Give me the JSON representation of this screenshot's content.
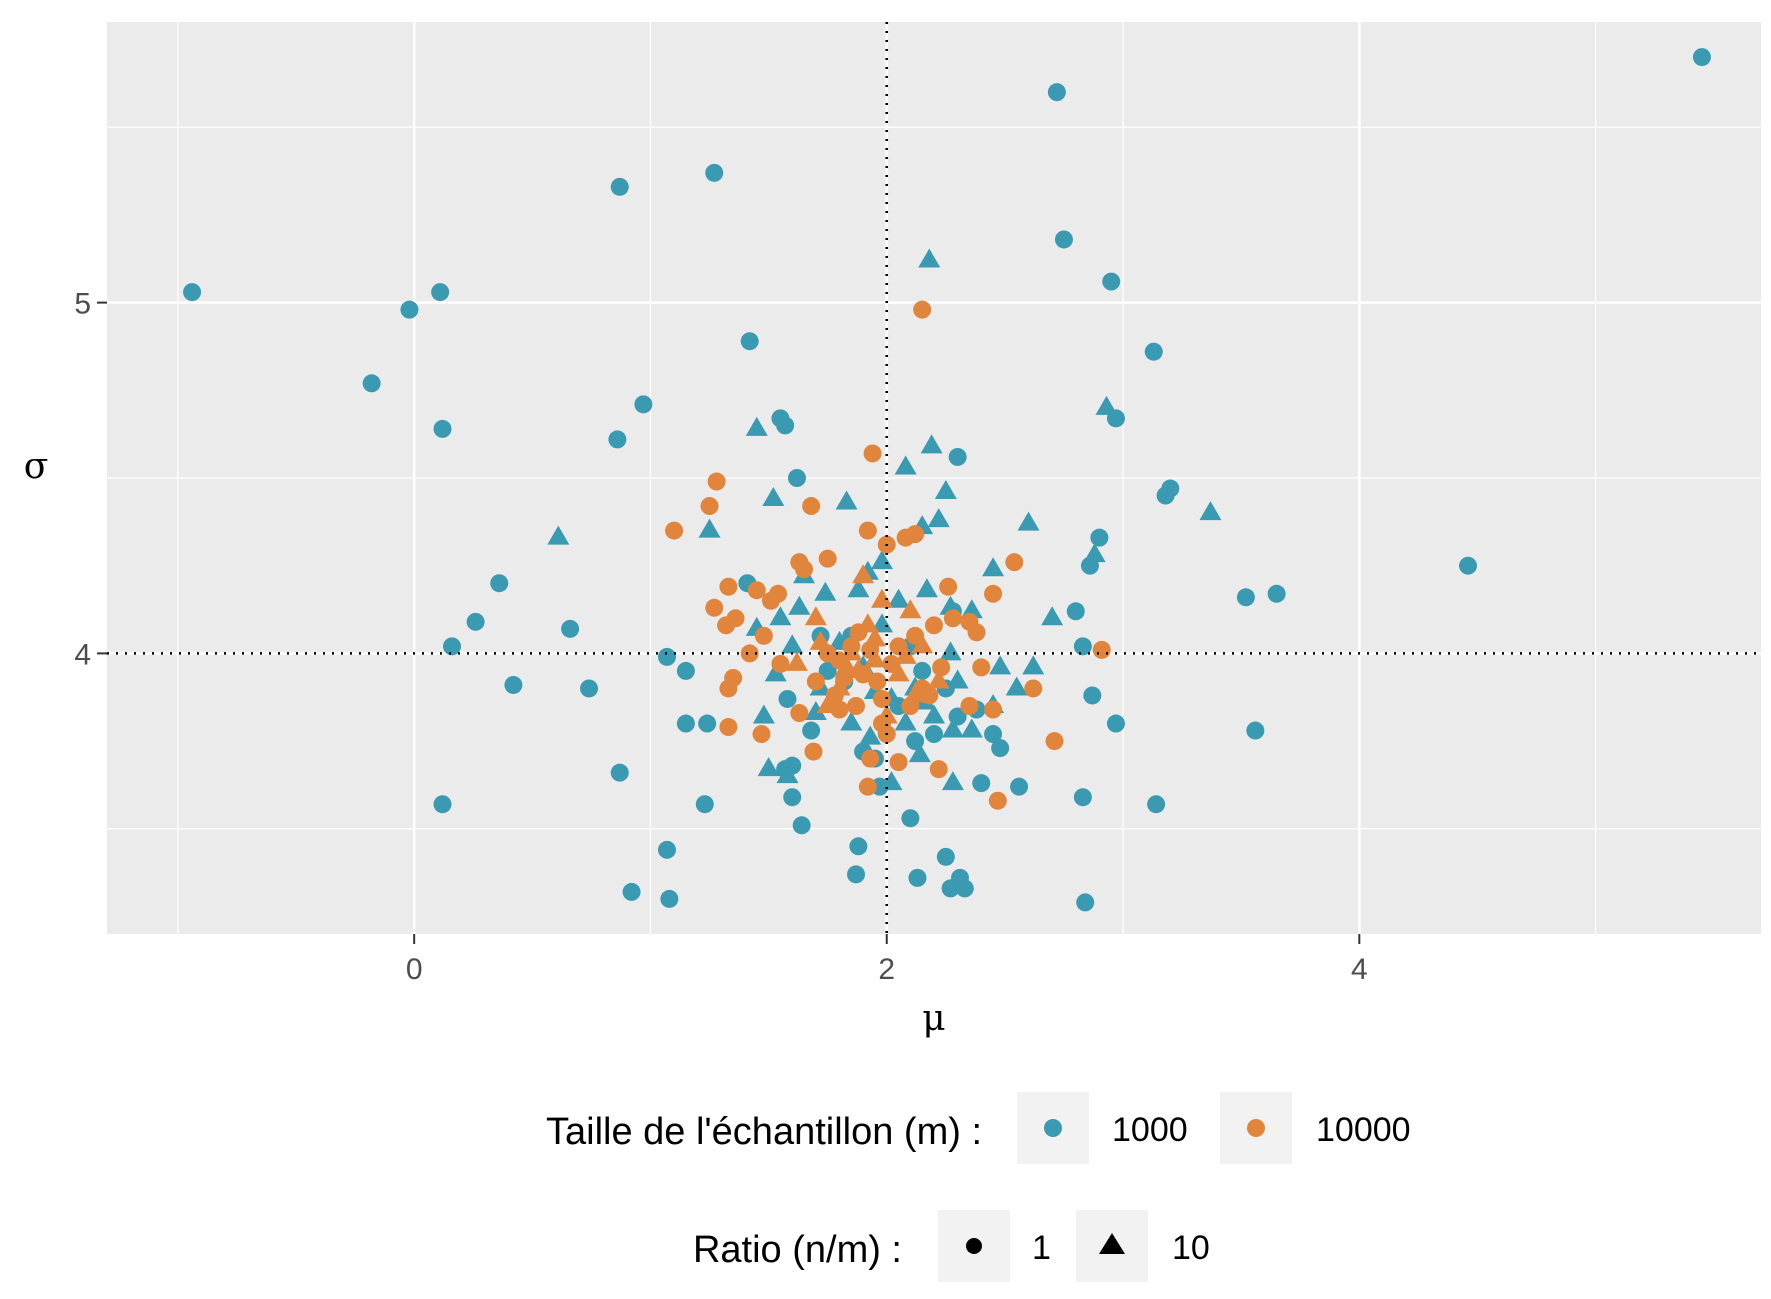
{
  "chart_data": {
    "type": "scatter",
    "xlabel": "μ",
    "ylabel": "σ",
    "xlim": [
      -1.3,
      5.7
    ],
    "ylim": [
      3.2,
      5.8
    ],
    "x_ticks": [
      0,
      2,
      4
    ],
    "y_ticks": [
      4,
      5
    ],
    "x_tick_labels": [
      "0",
      "2",
      "4"
    ],
    "y_tick_labels": [
      "4",
      "5"
    ],
    "grid": true,
    "reference_lines": {
      "x": 2,
      "y": 4,
      "style": "dotted"
    },
    "legend_position": "bottom",
    "legends": {
      "color": {
        "title": "Taille de l'échantillon (m) :",
        "entries": [
          {
            "label": "1000",
            "color": "#3a9ab1"
          },
          {
            "label": "10000",
            "color": "#e0853b"
          }
        ]
      },
      "shape": {
        "title": "Ratio (n/m) :",
        "entries": [
          {
            "label": "1",
            "shape": "circle"
          },
          {
            "label": "10",
            "shape": "triangle"
          }
        ]
      }
    },
    "series": [
      {
        "color": "#3a9ab1",
        "points": [
          [
            5.45,
            5.7
          ],
          [
            2.72,
            5.6
          ],
          [
            1.27,
            5.37
          ],
          [
            0.87,
            5.33
          ],
          [
            -0.94,
            5.03
          ],
          [
            0.11,
            5.03
          ],
          [
            -0.02,
            4.98
          ],
          [
            2.75,
            5.18
          ],
          [
            2.95,
            5.06
          ],
          [
            3.13,
            4.86
          ],
          [
            1.42,
            4.89
          ],
          [
            -0.18,
            4.77
          ],
          [
            0.12,
            4.64
          ],
          [
            0.97,
            4.71
          ],
          [
            0.86,
            4.61
          ],
          [
            1.57,
            4.65
          ],
          [
            1.55,
            4.67
          ],
          [
            2.97,
            4.67
          ],
          [
            2.3,
            4.56
          ],
          [
            1.62,
            4.5
          ],
          [
            3.2,
            4.47
          ],
          [
            3.18,
            4.45
          ],
          [
            2.9,
            4.33
          ],
          [
            2.86,
            4.25
          ],
          [
            4.46,
            4.25
          ],
          [
            3.52,
            4.16
          ],
          [
            3.65,
            4.17
          ],
          [
            0.36,
            4.2
          ],
          [
            0.26,
            4.09
          ],
          [
            0.66,
            4.07
          ],
          [
            0.16,
            4.02
          ],
          [
            1.41,
            4.2
          ],
          [
            2.8,
            4.12
          ],
          [
            2.83,
            4.02
          ],
          [
            1.07,
            3.99
          ],
          [
            1.15,
            3.95
          ],
          [
            0.42,
            3.91
          ],
          [
            0.74,
            3.9
          ],
          [
            2.87,
            3.88
          ],
          [
            1.15,
            3.8
          ],
          [
            1.24,
            3.8
          ],
          [
            2.97,
            3.8
          ],
          [
            3.56,
            3.78
          ],
          [
            2.45,
            3.77
          ],
          [
            2.48,
            3.73
          ],
          [
            1.57,
            3.67
          ],
          [
            1.6,
            3.68
          ],
          [
            0.87,
            3.66
          ],
          [
            2.4,
            3.63
          ],
          [
            2.56,
            3.62
          ],
          [
            1.97,
            3.62
          ],
          [
            0.12,
            3.57
          ],
          [
            1.23,
            3.57
          ],
          [
            1.6,
            3.59
          ],
          [
            2.83,
            3.59
          ],
          [
            3.14,
            3.57
          ],
          [
            1.64,
            3.51
          ],
          [
            2.1,
            3.53
          ],
          [
            1.07,
            3.44
          ],
          [
            1.88,
            3.45
          ],
          [
            2.25,
            3.42
          ],
          [
            1.87,
            3.37
          ],
          [
            2.13,
            3.36
          ],
          [
            2.31,
            3.36
          ],
          [
            2.33,
            3.33
          ],
          [
            2.27,
            3.33
          ],
          [
            0.92,
            3.32
          ],
          [
            1.08,
            3.3
          ],
          [
            2.84,
            3.29
          ],
          [
            1.9,
            3.72
          ],
          [
            2.05,
            3.85
          ],
          [
            2.25,
            3.9
          ],
          [
            1.75,
            3.95
          ],
          [
            2.15,
            3.95
          ],
          [
            1.85,
            4.05
          ],
          [
            2.3,
            3.82
          ],
          [
            1.68,
            3.78
          ],
          [
            2.2,
            3.77
          ],
          [
            1.95,
            3.7
          ],
          [
            2.12,
            3.75
          ],
          [
            1.58,
            3.87
          ],
          [
            2.38,
            3.84
          ],
          [
            1.72,
            4.05
          ],
          [
            2.28,
            4.12
          ],
          [
            1.82,
            3.92
          ],
          [
            2.1,
            4.02
          ]
        ]
      },
      {
        "color": "#3a9ab1",
        "marker": "triangle",
        "points": [
          [
            2.18,
            5.12
          ],
          [
            2.93,
            4.7
          ],
          [
            1.45,
            4.64
          ],
          [
            2.19,
            4.59
          ],
          [
            2.08,
            4.53
          ],
          [
            2.25,
            4.46
          ],
          [
            1.52,
            4.44
          ],
          [
            1.83,
            4.43
          ],
          [
            3.37,
            4.4
          ],
          [
            2.22,
            4.38
          ],
          [
            2.15,
            4.36
          ],
          [
            0.61,
            4.33
          ],
          [
            1.25,
            4.35
          ],
          [
            2.6,
            4.37
          ],
          [
            2.88,
            4.28
          ],
          [
            1.98,
            4.26
          ],
          [
            2.45,
            4.24
          ],
          [
            1.65,
            4.22
          ],
          [
            1.88,
            4.18
          ],
          [
            2.27,
            4.13
          ],
          [
            2.36,
            4.12
          ],
          [
            2.7,
            4.1
          ],
          [
            1.45,
            4.07
          ],
          [
            1.55,
            4.1
          ],
          [
            1.74,
            4.17
          ],
          [
            2.62,
            3.96
          ],
          [
            2.48,
            3.96
          ],
          [
            2.55,
            3.9
          ],
          [
            2.45,
            3.85
          ],
          [
            2.08,
            3.8
          ],
          [
            2.28,
            3.78
          ],
          [
            2.36,
            3.78
          ],
          [
            2.14,
            3.71
          ],
          [
            2.02,
            3.63
          ],
          [
            2.28,
            3.63
          ],
          [
            1.5,
            3.67
          ],
          [
            1.58,
            3.65
          ],
          [
            1.93,
            3.76
          ],
          [
            2.2,
            3.82
          ],
          [
            1.95,
            3.89
          ],
          [
            2.17,
            4.18
          ],
          [
            2.05,
            4.15
          ],
          [
            1.63,
            4.13
          ],
          [
            1.92,
            4.23
          ],
          [
            1.53,
            3.94
          ],
          [
            1.7,
            3.83
          ],
          [
            1.85,
            3.8
          ],
          [
            2.27,
            4.0
          ],
          [
            1.8,
            4.03
          ],
          [
            2.02,
            3.87
          ],
          [
            1.6,
            4.02
          ],
          [
            2.12,
            3.9
          ],
          [
            1.48,
            3.82
          ],
          [
            1.72,
            3.9
          ],
          [
            2.3,
            3.92
          ],
          [
            1.98,
            4.08
          ],
          [
            2.16,
            3.86
          ],
          [
            1.9,
            3.96
          ]
        ]
      },
      {
        "color": "#e0853b",
        "points": [
          [
            2.15,
            4.98
          ],
          [
            1.94,
            4.57
          ],
          [
            1.28,
            4.49
          ],
          [
            1.25,
            4.42
          ],
          [
            1.68,
            4.42
          ],
          [
            1.92,
            4.35
          ],
          [
            1.1,
            4.35
          ],
          [
            2.08,
            4.33
          ],
          [
            2.12,
            4.34
          ],
          [
            2.0,
            4.31
          ],
          [
            1.75,
            4.27
          ],
          [
            2.54,
            4.26
          ],
          [
            1.63,
            4.26
          ],
          [
            1.65,
            4.24
          ],
          [
            2.26,
            4.19
          ],
          [
            2.45,
            4.17
          ],
          [
            1.33,
            4.19
          ],
          [
            1.51,
            4.15
          ],
          [
            1.27,
            4.13
          ],
          [
            1.54,
            4.17
          ],
          [
            1.45,
            4.18
          ],
          [
            1.32,
            4.08
          ],
          [
            1.36,
            4.1
          ],
          [
            1.48,
            4.05
          ],
          [
            2.38,
            4.06
          ],
          [
            2.35,
            4.09
          ],
          [
            2.91,
            4.01
          ],
          [
            1.42,
            4.0
          ],
          [
            1.55,
            3.97
          ],
          [
            2.4,
            3.96
          ],
          [
            1.35,
            3.93
          ],
          [
            1.33,
            3.9
          ],
          [
            2.62,
            3.9
          ],
          [
            2.35,
            3.85
          ],
          [
            2.45,
            3.84
          ],
          [
            1.33,
            3.79
          ],
          [
            1.47,
            3.77
          ],
          [
            1.63,
            3.83
          ],
          [
            1.98,
            3.8
          ],
          [
            2.0,
            3.77
          ],
          [
            1.69,
            3.72
          ],
          [
            2.71,
            3.75
          ],
          [
            1.93,
            3.7
          ],
          [
            2.05,
            3.69
          ],
          [
            2.22,
            3.67
          ],
          [
            1.92,
            3.62
          ],
          [
            2.47,
            3.58
          ],
          [
            1.85,
            4.02
          ],
          [
            1.9,
            3.94
          ],
          [
            1.8,
            3.98
          ],
          [
            1.96,
            3.92
          ],
          [
            1.78,
            3.88
          ],
          [
            2.15,
            3.9
          ],
          [
            2.12,
            4.05
          ],
          [
            1.88,
            4.06
          ],
          [
            2.2,
            4.08
          ],
          [
            2.1,
            3.85
          ],
          [
            1.98,
            3.87
          ],
          [
            1.82,
            3.93
          ],
          [
            2.23,
            3.96
          ],
          [
            1.75,
            4.0
          ],
          [
            1.93,
            4.01
          ],
          [
            2.05,
            4.02
          ],
          [
            1.7,
            3.92
          ],
          [
            2.18,
            3.88
          ],
          [
            1.87,
            3.85
          ],
          [
            2.28,
            4.1
          ],
          [
            1.8,
            3.84
          ],
          [
            2.02,
            3.97
          ]
        ]
      },
      {
        "color": "#e0853b",
        "marker": "triangle",
        "points": [
          [
            1.9,
            4.22
          ],
          [
            1.98,
            4.15
          ],
          [
            1.7,
            4.1
          ],
          [
            2.1,
            4.12
          ],
          [
            1.85,
            4.0
          ],
          [
            1.95,
            3.98
          ],
          [
            2.05,
            3.94
          ],
          [
            1.8,
            3.9
          ],
          [
            2.15,
            4.02
          ],
          [
            1.75,
            3.85
          ],
          [
            1.92,
            4.08
          ],
          [
            2.22,
            3.92
          ],
          [
            1.62,
            3.97
          ],
          [
            2.0,
            3.82
          ],
          [
            1.88,
            3.95
          ],
          [
            1.72,
            4.03
          ],
          [
            2.12,
            3.88
          ],
          [
            1.95,
            4.04
          ],
          [
            1.83,
            3.96
          ],
          [
            2.08,
            3.99
          ]
        ]
      }
    ]
  }
}
